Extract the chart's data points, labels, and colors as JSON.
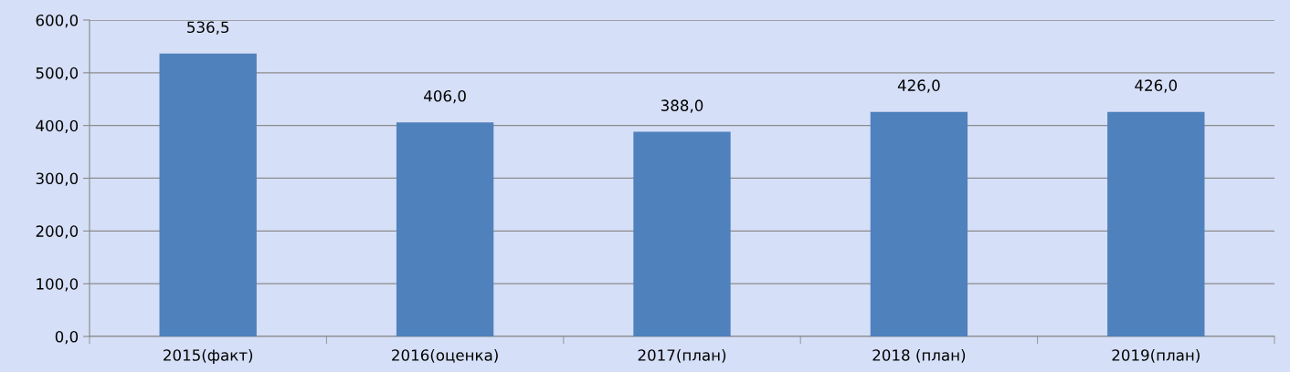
{
  "chart_data": {
    "type": "bar",
    "categories": [
      "2015(факт)",
      "2016(оценка)",
      "2017(план)",
      "2018 (план)",
      "2019(план)"
    ],
    "values": [
      536.5,
      406.0,
      388.0,
      426.0,
      426.0
    ],
    "value_labels": [
      "536,5",
      "406,0",
      "388,0",
      "426,0",
      "426,0"
    ],
    "color": "#4f81bd",
    "ylim": [
      0,
      600
    ],
    "yticks": [
      {
        "value": 0,
        "label": "0,0"
      },
      {
        "value": 100,
        "label": "100,0"
      },
      {
        "value": 200,
        "label": "200,0"
      },
      {
        "value": 300,
        "label": "300,0"
      },
      {
        "value": 400,
        "label": "400,0"
      },
      {
        "value": 500,
        "label": "500,0"
      },
      {
        "value": 600,
        "label": "600,0"
      }
    ],
    "grid": "y"
  }
}
